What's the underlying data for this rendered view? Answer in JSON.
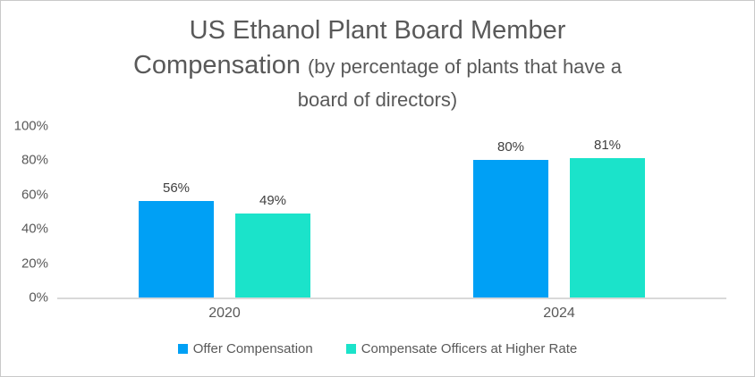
{
  "figure": {
    "title_line1": "US Ethanol Plant Board Member",
    "title_line2_main": "Compensation",
    "title_line2_sub": "(by percentage of plants that have a",
    "title_line3_sub": "board of directors)"
  },
  "chart_data": {
    "type": "bar",
    "title": "US Ethanol Plant Board Member Compensation",
    "subtitle": "(by percentage of plants that have a board of directors)",
    "categories": [
      "2020",
      "2024"
    ],
    "series": [
      {
        "name": "Offer Compensation",
        "color": "#00A0F5",
        "values": [
          56,
          80
        ]
      },
      {
        "name": "Compensate Officers at Higher Rate",
        "color": "#1BE3CA",
        "values": [
          49,
          81
        ]
      }
    ],
    "value_suffix": "%",
    "ylim": [
      0,
      100
    ],
    "yticks": [
      0,
      20,
      40,
      60,
      80,
      100
    ],
    "ytick_labels": [
      "0%",
      "20%",
      "40%",
      "60%",
      "80%",
      "100%"
    ],
    "data_labels": [
      "56%",
      "49%",
      "80%",
      "81%"
    ],
    "grid": false,
    "legend_position": "bottom",
    "axis_line_color": "#D9D9D9",
    "text_color": "#595959",
    "data_label_color": "#404040"
  }
}
